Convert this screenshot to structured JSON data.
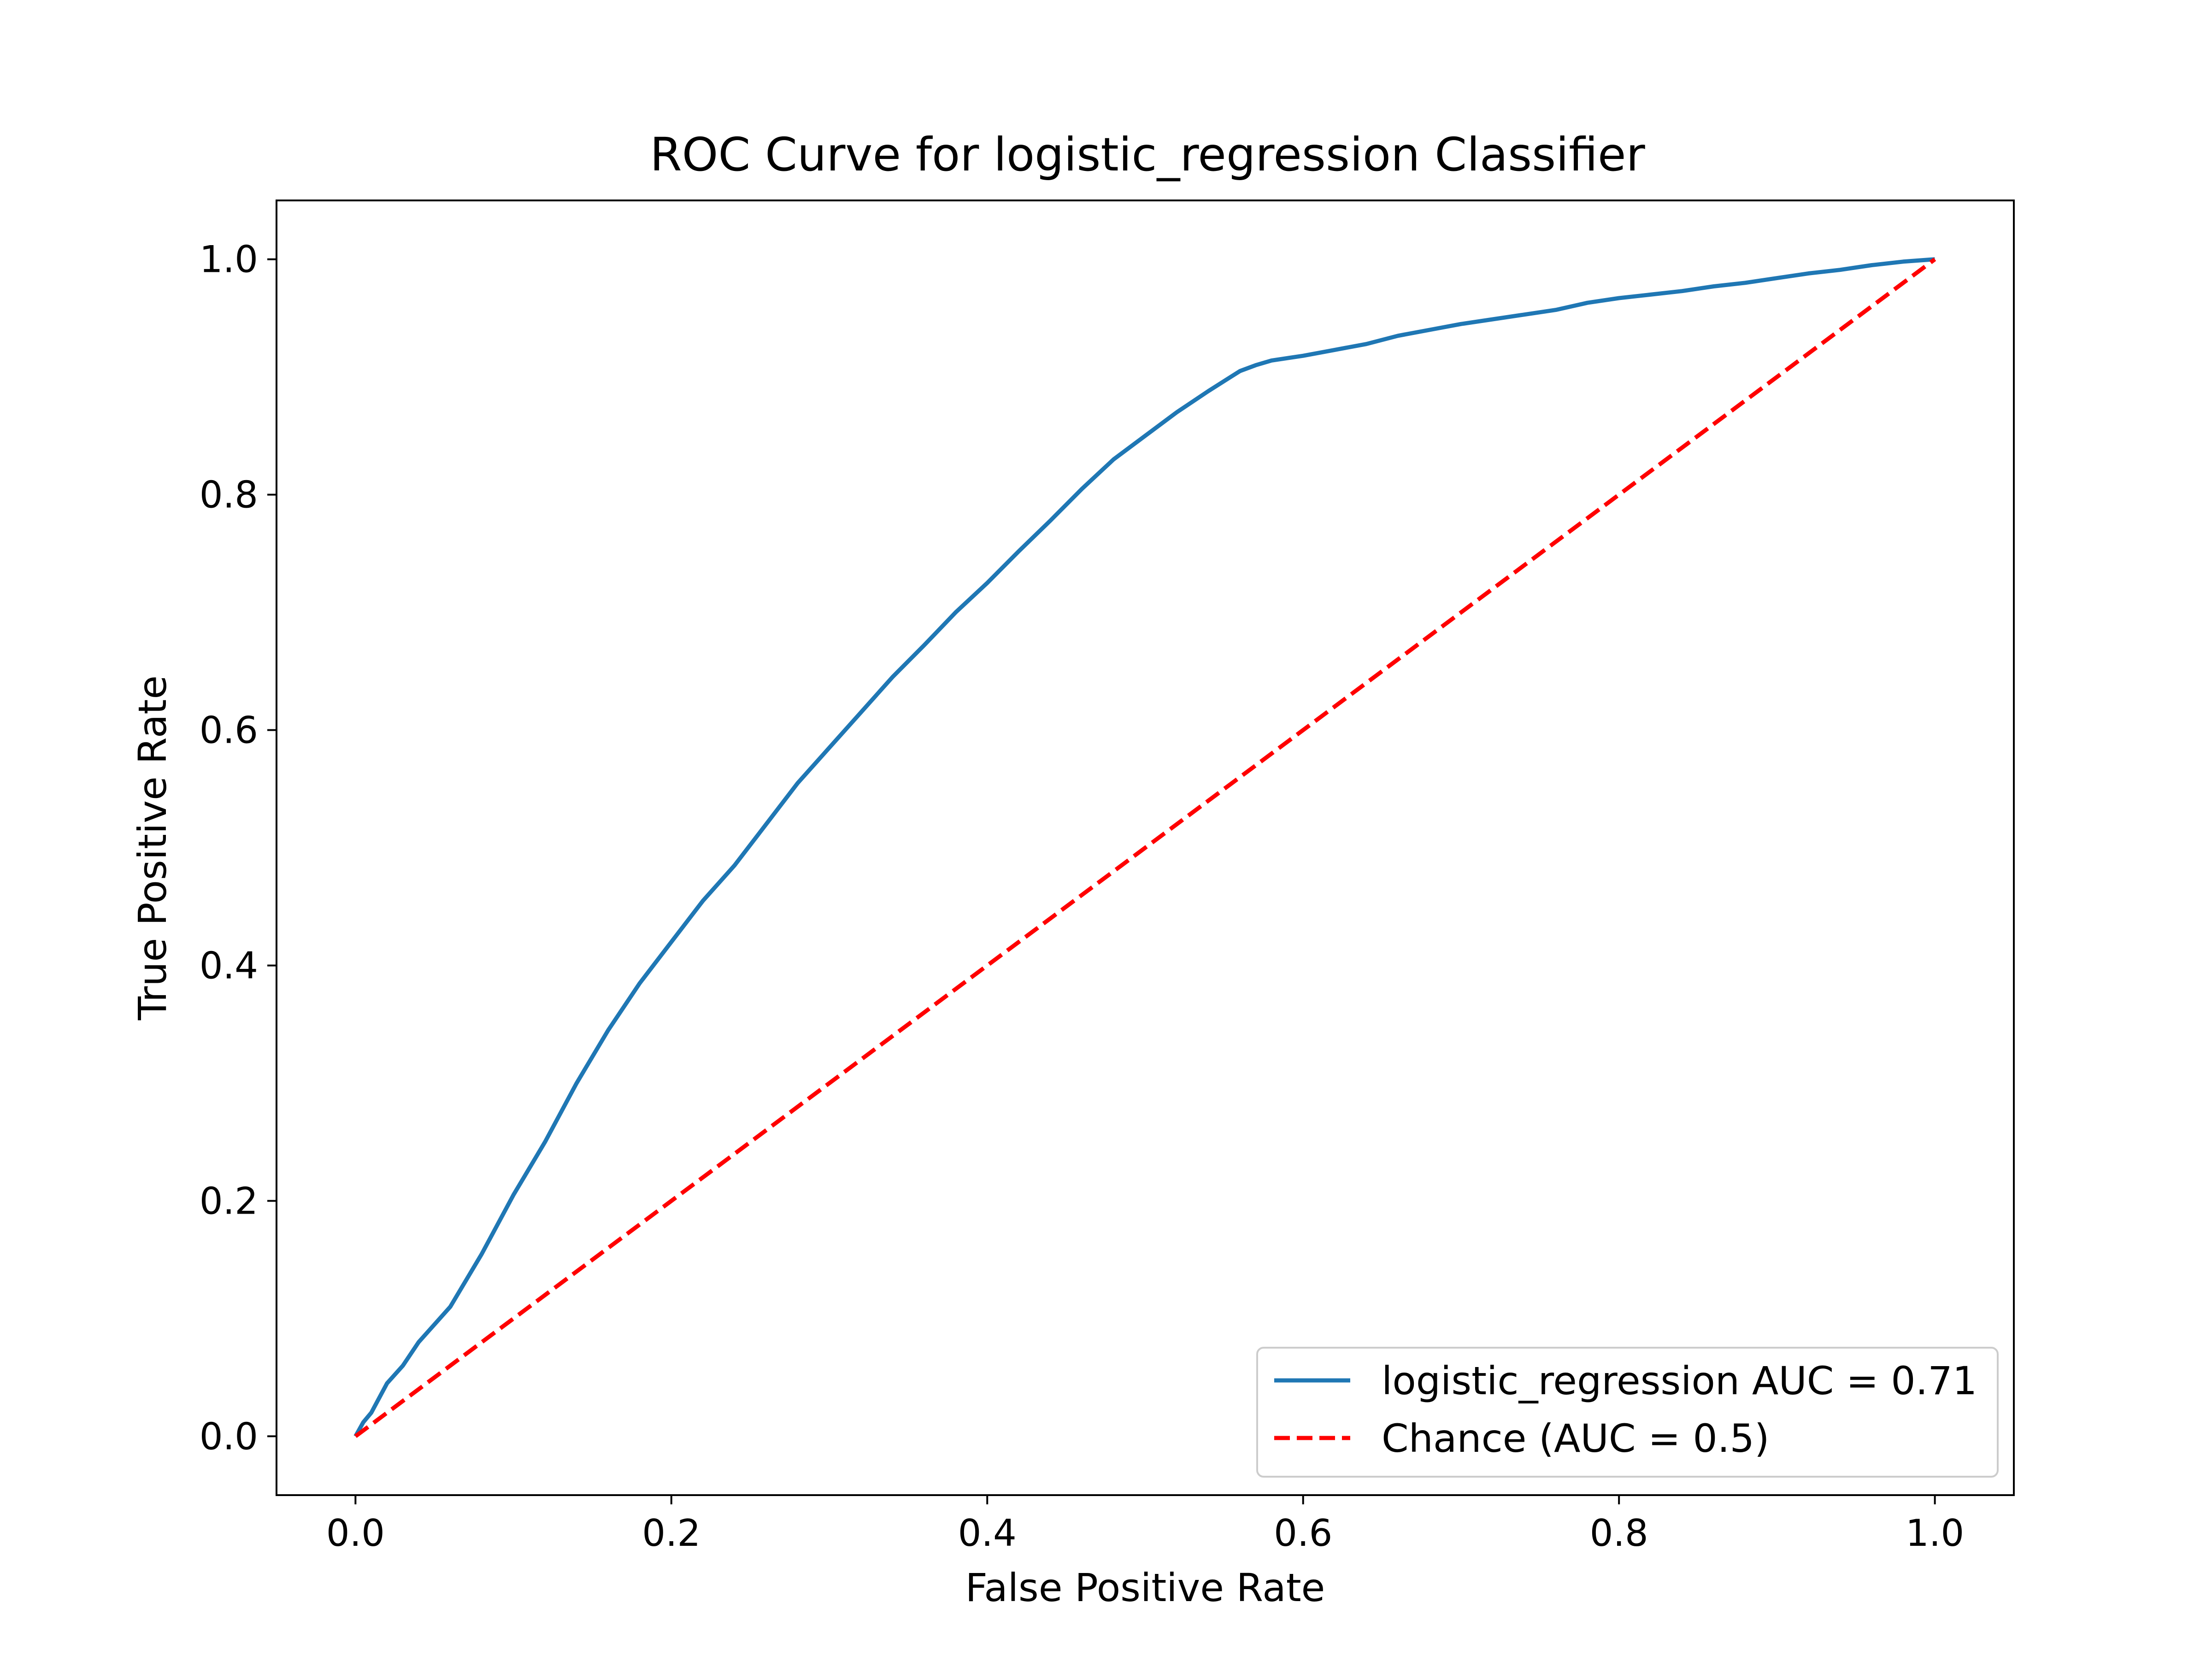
{
  "chart_data": {
    "type": "line",
    "title": "ROC Curve for logistic_regression Classifier",
    "xlabel": "False Positive Rate",
    "ylabel": "True Positive Rate",
    "xlim": [
      -0.05,
      1.05
    ],
    "ylim": [
      -0.05,
      1.05
    ],
    "xticks": [
      0.0,
      0.2,
      0.4,
      0.6,
      0.8,
      1.0
    ],
    "yticks": [
      0.0,
      0.2,
      0.4,
      0.6,
      0.8,
      1.0
    ],
    "xtick_labels": [
      "0.0",
      "0.2",
      "0.4",
      "0.6",
      "0.8",
      "1.0"
    ],
    "ytick_labels": [
      "0.0",
      "0.2",
      "0.4",
      "0.6",
      "0.8",
      "1.0"
    ],
    "grid": false,
    "legend_position": "lower-right",
    "series": [
      {
        "name": "logistic_regression AUC = 0.71",
        "color": "#1f77b4",
        "style": "solid",
        "x": [
          0.0,
          0.005,
          0.01,
          0.02,
          0.03,
          0.04,
          0.05,
          0.06,
          0.08,
          0.1,
          0.12,
          0.14,
          0.16,
          0.18,
          0.2,
          0.22,
          0.24,
          0.26,
          0.28,
          0.3,
          0.32,
          0.34,
          0.36,
          0.38,
          0.4,
          0.42,
          0.44,
          0.46,
          0.48,
          0.5,
          0.52,
          0.54,
          0.56,
          0.57,
          0.58,
          0.6,
          0.62,
          0.64,
          0.66,
          0.68,
          0.7,
          0.72,
          0.74,
          0.76,
          0.78,
          0.8,
          0.82,
          0.84,
          0.86,
          0.88,
          0.9,
          0.92,
          0.94,
          0.96,
          0.98,
          1.0
        ],
        "y": [
          0.0,
          0.012,
          0.02,
          0.045,
          0.06,
          0.08,
          0.095,
          0.11,
          0.155,
          0.205,
          0.25,
          0.3,
          0.345,
          0.385,
          0.42,
          0.455,
          0.485,
          0.52,
          0.555,
          0.585,
          0.615,
          0.645,
          0.672,
          0.7,
          0.725,
          0.752,
          0.778,
          0.805,
          0.83,
          0.85,
          0.87,
          0.888,
          0.905,
          0.91,
          0.914,
          0.918,
          0.923,
          0.928,
          0.935,
          0.94,
          0.945,
          0.949,
          0.953,
          0.957,
          0.963,
          0.967,
          0.97,
          0.973,
          0.977,
          0.98,
          0.984,
          0.988,
          0.991,
          0.995,
          0.998,
          1.0
        ]
      },
      {
        "name": "Chance (AUC = 0.5)",
        "color": "#ff0000",
        "style": "dashed",
        "x": [
          0.0,
          1.0
        ],
        "y": [
          0.0,
          1.0
        ]
      }
    ]
  }
}
